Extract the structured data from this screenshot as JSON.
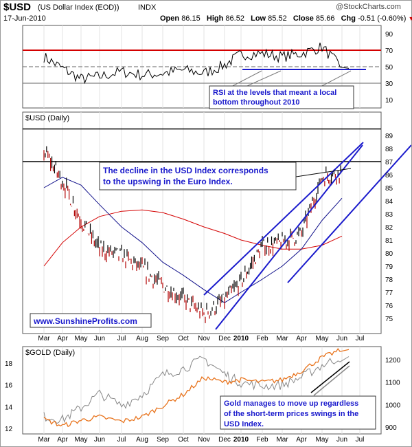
{
  "header": {
    "symbol": "$USD",
    "name": "(US Dollar Index (EOD))",
    "exchange": "INDX",
    "date": "17-Jun-2010",
    "copyright": "@StockCharts.com",
    "open_label": "Open",
    "open": "86.15",
    "high_label": "High",
    "high": "86.52",
    "low_label": "Low",
    "low": "85.52",
    "close_label": "Close",
    "close": "85.66",
    "chg_label": "Chg",
    "chg": "-0.51 (-0.60%)",
    "chg_marker": "▼",
    "down_color": "#cc0000"
  },
  "months": [
    "Mar",
    "Apr",
    "May",
    "Jun",
    "Jul",
    "Aug",
    "Sep",
    "Oct",
    "Nov",
    "Dec",
    "2010",
    "Feb",
    "Mar",
    "Apr",
    "May",
    "Jun",
    "Jul"
  ],
  "rsi_panel": {
    "ticks": [
      "90",
      "70",
      "50",
      "30",
      "10"
    ],
    "annotation": [
      "RSI at the levels that meant a local",
      "bottom throughout 2010"
    ],
    "overbought_color": "#d40000"
  },
  "price_panel": {
    "label": "$USD (Daily)",
    "ticks": [
      "89",
      "88",
      "87",
      "86",
      "85",
      "84",
      "83",
      "82",
      "81",
      "80",
      "79",
      "78",
      "77",
      "76",
      "75"
    ],
    "annotation": [
      "The decline in the USD Index corresponds",
      "to the upswing in the Euro Index."
    ],
    "watermark": "www.SunshineProfits.com",
    "annotation_color": "#1a1acc"
  },
  "gold_panel": {
    "label": "$GOLD (Daily)",
    "left_ticks": [
      "18",
      "16",
      "14",
      "12"
    ],
    "right_ticks": [
      "1200",
      "1100",
      "1000",
      "900"
    ],
    "annotation": [
      "Gold manages to move up regardless",
      "of the short-term prices swings in the",
      "USD Index."
    ],
    "gold_color": "#e8731c",
    "ratio_color": "#888888"
  },
  "chart_data": [
    {
      "type": "line",
      "title": "RSI",
      "ylim": [
        0,
        100
      ],
      "reference_lines": [
        70,
        50,
        30
      ],
      "x": [
        "2009-03",
        "2009-04",
        "2009-05",
        "2009-06",
        "2009-07",
        "2009-08",
        "2009-09",
        "2009-10",
        "2009-11",
        "2009-12",
        "2010-01",
        "2010-02",
        "2010-03",
        "2010-04",
        "2010-05",
        "2010-06"
      ],
      "series": [
        {
          "values": [
            62,
            48,
            35,
            38,
            44,
            40,
            42,
            46,
            42,
            52,
            65,
            66,
            62,
            66,
            74,
            48
          ]
        }
      ]
    },
    {
      "type": "line",
      "title": "$USD (Daily)",
      "ylim": [
        74,
        90
      ],
      "x": [
        "2009-03",
        "2009-04",
        "2009-05",
        "2009-06",
        "2009-07",
        "2009-08",
        "2009-09",
        "2009-10",
        "2009-11",
        "2009-12",
        "2010-01",
        "2010-02",
        "2010-03",
        "2010-04",
        "2010-05",
        "2010-06"
      ],
      "series": [
        {
          "values": [
            87.8,
            85.5,
            82.5,
            80.3,
            79.8,
            78.8,
            77.5,
            76.5,
            75.3,
            76.4,
            77.8,
            80.5,
            80.8,
            81.5,
            85.8,
            86.2
          ]
        },
        {
          "values": [
            85.0,
            85.8,
            85.2,
            83.7,
            82.0,
            80.8,
            79.3,
            78.3,
            77.2,
            76.2,
            77.0,
            78.0,
            79.0,
            80.3,
            82.5,
            84.2
          ]
        },
        {
          "values": [
            79.0,
            80.8,
            82.0,
            82.8,
            83.2,
            83.3,
            83.1,
            82.6,
            82.0,
            81.5,
            81.0,
            80.6,
            80.3,
            80.3,
            80.6,
            81.3
          ]
        }
      ]
    },
    {
      "type": "line",
      "title": "$GOLD (Daily)",
      "x": [
        "2009-03",
        "2009-04",
        "2009-05",
        "2009-06",
        "2009-07",
        "2009-08",
        "2009-09",
        "2009-10",
        "2009-11",
        "2009-12",
        "2010-01",
        "2010-02",
        "2010-03",
        "2010-04",
        "2010-05",
        "2010-06"
      ],
      "series": [
        {
          "values": [
            935,
            905,
            930,
            945,
            925,
            945,
            995,
            1045,
            1120,
            1100,
            1110,
            1100,
            1110,
            1150,
            1210,
            1245
          ]
        },
        {
          "values": [
            13.1,
            12.8,
            13.9,
            15.2,
            14.1,
            15.1,
            16.9,
            17.5,
            18.4,
            17.0,
            16.2,
            15.9,
            16.0,
            16.7,
            17.8,
            18.6
          ]
        }
      ]
    }
  ]
}
